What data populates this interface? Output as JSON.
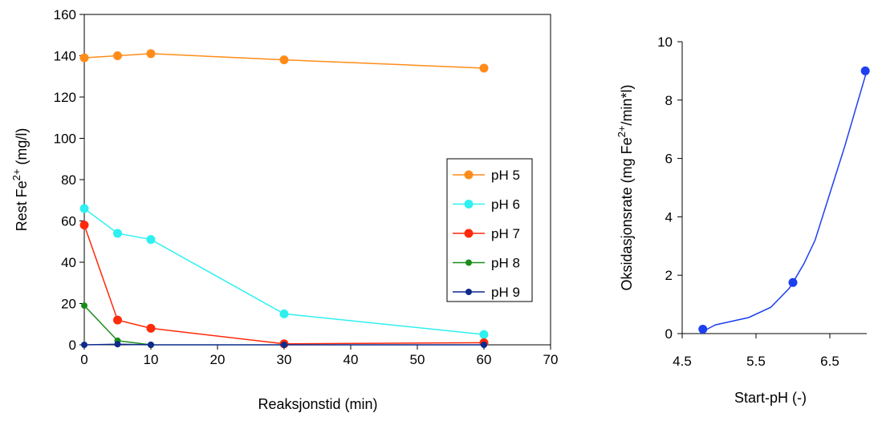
{
  "chart_data": [
    {
      "type": "line",
      "xlabel": "Reaksjonstid (min)",
      "ylabel": {
        "base": "Rest Fe",
        "sup": "2+",
        "unit": " (mg/l)"
      },
      "xlim": [
        0,
        70
      ],
      "ylim": [
        0,
        160
      ],
      "xticks": [
        0,
        10,
        20,
        30,
        40,
        50,
        60,
        70
      ],
      "yticks": [
        0,
        20,
        40,
        60,
        80,
        100,
        120,
        140,
        160
      ],
      "grid": false,
      "legend": "right-middle",
      "series": [
        {
          "name": "pH 5",
          "color": "#ff8c1a",
          "marker": "large",
          "x": [
            0,
            5,
            10,
            30,
            60
          ],
          "y": [
            139,
            140,
            141,
            138,
            134
          ]
        },
        {
          "name": "pH 6",
          "color": "#2ff0f0",
          "marker": "large",
          "x": [
            0,
            5,
            10,
            30,
            60
          ],
          "y": [
            66,
            54,
            51,
            15,
            5
          ]
        },
        {
          "name": "pH 7",
          "color": "#ff2a0a",
          "marker": "large",
          "x": [
            0,
            5,
            10,
            30,
            60
          ],
          "y": [
            58,
            12,
            8,
            0.5,
            1
          ]
        },
        {
          "name": "pH 8",
          "color": "#1a8c1a",
          "marker": "small",
          "x": [
            0,
            5,
            10
          ],
          "y": [
            19,
            2,
            0
          ]
        },
        {
          "name": "pH 9",
          "color": "#0d2a8c",
          "marker": "small",
          "x": [
            0,
            5,
            10,
            30,
            60
          ],
          "y": [
            0,
            0.3,
            0,
            0,
            0
          ]
        }
      ]
    },
    {
      "type": "line",
      "xlabel": "Start-pH (-)",
      "ylabel": {
        "base": "Oksidasjonsrate (mg Fe",
        "sup": "2+",
        "unit": "/min*l)"
      },
      "xlim": [
        4.5,
        7.0
      ],
      "ylim": [
        0,
        10
      ],
      "xticks": [
        4.5,
        5.5,
        6.5
      ],
      "yticks": [
        0,
        2,
        4,
        6,
        8,
        10
      ],
      "grid": false,
      "series": [
        {
          "color": "#1c3ff0",
          "curve_x": [
            4.8,
            4.95,
            5.4,
            5.7,
            5.95,
            6.0,
            6.15,
            6.3,
            6.5,
            6.7,
            6.85,
            7.0
          ],
          "curve_y": [
            0.1,
            0.3,
            0.55,
            0.9,
            1.55,
            1.75,
            2.4,
            3.2,
            4.8,
            6.4,
            7.7,
            9.0
          ],
          "points_x": [
            4.78,
            6.0,
            6.98
          ],
          "points_y": [
            0.15,
            1.75,
            9.0
          ]
        }
      ]
    }
  ]
}
